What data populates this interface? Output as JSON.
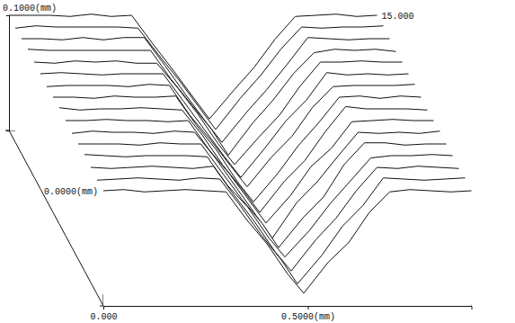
{
  "chart_data": {
    "type": "surface",
    "x": [
      0,
      0.05,
      0.1,
      0.15,
      0.2,
      0.25,
      0.3,
      0.35,
      0.4,
      0.45,
      0.49,
      0.55,
      0.6,
      0.65,
      0.7,
      0.75,
      0.8,
      0.85,
      0.9
    ],
    "xlim": [
      0,
      0.9
    ],
    "xticks": [
      {
        "value": 0,
        "label": "0.000"
      },
      {
        "value": 0.5,
        "label": "0.5000(mm)"
      }
    ],
    "ylim": [
      0,
      15
    ],
    "yticks": [
      {
        "value": 0,
        "label": "0.0000(mm)"
      },
      {
        "value": 15,
        "label": "15.000"
      }
    ],
    "zlim": [
      0,
      0.1
    ],
    "zticks": [
      {
        "value": 0.1,
        "label": "0.1000(mm)"
      }
    ],
    "color": "#111111",
    "series": [
      {
        "y": 15,
        "values": [
          0.1,
          0.1,
          0.1,
          0.099,
          0.101,
          0.099,
          0.1,
          0.076,
          0.053,
          0.029,
          0.01,
          0.035,
          0.055,
          0.079,
          0.099,
          0.1,
          0.101,
          0.099,
          0.1
        ]
      },
      {
        "y": 14,
        "values": [
          0.099,
          0.101,
          0.1,
          0.1,
          0.1,
          0.1,
          0.099,
          0.076,
          0.054,
          0.03,
          0.011,
          0.038,
          0.058,
          0.081,
          0.1,
          0.099,
          0.1,
          0.1,
          0.101
        ]
      },
      {
        "y": 13,
        "values": [
          0.1,
          0.1,
          0.099,
          0.101,
          0.099,
          0.101,
          0.101,
          0.077,
          0.052,
          0.028,
          0.01,
          0.036,
          0.056,
          0.078,
          0.101,
          0.1,
          0.099,
          0.1,
          0.1
        ]
      },
      {
        "y": 12,
        "values": [
          0.101,
          0.1,
          0.1,
          0.1,
          0.1,
          0.1,
          0.1,
          0.075,
          0.053,
          0.031,
          0.009,
          0.037,
          0.057,
          0.08,
          0.098,
          0.101,
          0.1,
          0.101,
          0.099
        ]
      },
      {
        "y": 11,
        "values": [
          0.1,
          0.099,
          0.101,
          0.1,
          0.101,
          0.099,
          0.099,
          0.078,
          0.055,
          0.029,
          0.011,
          0.035,
          0.054,
          0.079,
          0.1,
          0.1,
          0.101,
          0.1,
          0.1
        ]
      },
      {
        "y": 10,
        "values": [
          0.1,
          0.101,
          0.1,
          0.099,
          0.1,
          0.1,
          0.1,
          0.076,
          0.052,
          0.028,
          0.01,
          0.036,
          0.059,
          0.077,
          0.101,
          0.099,
          0.1,
          0.099,
          0.1
        ]
      },
      {
        "y": 9,
        "values": [
          0.099,
          0.1,
          0.1,
          0.1,
          0.099,
          0.101,
          0.1,
          0.074,
          0.053,
          0.03,
          0.012,
          0.038,
          0.056,
          0.081,
          0.099,
          0.1,
          0.1,
          0.1,
          0.101
        ]
      },
      {
        "y": 8,
        "values": [
          0.1,
          0.1,
          0.099,
          0.101,
          0.1,
          0.1,
          0.101,
          0.076,
          0.054,
          0.027,
          0.009,
          0.034,
          0.058,
          0.078,
          0.1,
          0.101,
          0.099,
          0.101,
          0.1
        ]
      },
      {
        "y": 7,
        "values": [
          0.101,
          0.099,
          0.1,
          0.1,
          0.101,
          0.1,
          0.099,
          0.077,
          0.051,
          0.029,
          0.01,
          0.037,
          0.055,
          0.08,
          0.102,
          0.1,
          0.1,
          0.1,
          0.099
        ]
      },
      {
        "y": 6,
        "values": [
          0.1,
          0.1,
          0.101,
          0.1,
          0.1,
          0.099,
          0.1,
          0.075,
          0.054,
          0.03,
          0.011,
          0.035,
          0.06,
          0.076,
          0.099,
          0.1,
          0.101,
          0.1,
          0.1
        ]
      },
      {
        "y": 5,
        "values": [
          0.099,
          0.101,
          0.1,
          0.1,
          0.099,
          0.101,
          0.1,
          0.078,
          0.053,
          0.028,
          0.008,
          0.039,
          0.057,
          0.079,
          0.1,
          0.099,
          0.1,
          0.099,
          0.101
        ]
      },
      {
        "y": 4,
        "values": [
          0.1,
          0.1,
          0.1,
          0.099,
          0.101,
          0.1,
          0.1,
          0.076,
          0.052,
          0.031,
          0.01,
          0.036,
          0.054,
          0.082,
          0.101,
          0.101,
          0.099,
          0.1,
          0.1
        ]
      },
      {
        "y": 3,
        "values": [
          0.101,
          0.1,
          0.099,
          0.1,
          0.1,
          0.1,
          0.099,
          0.074,
          0.055,
          0.029,
          0.012,
          0.035,
          0.058,
          0.078,
          0.098,
          0.1,
          0.1,
          0.101,
          0.1
        ]
      },
      {
        "y": 2,
        "values": [
          0.1,
          0.099,
          0.1,
          0.101,
          0.1,
          0.099,
          0.101,
          0.076,
          0.053,
          0.027,
          0.01,
          0.037,
          0.056,
          0.08,
          0.1,
          0.099,
          0.101,
          0.1,
          0.099
        ]
      },
      {
        "y": 1,
        "values": [
          0.099,
          0.1,
          0.101,
          0.1,
          0.099,
          0.101,
          0.1,
          0.077,
          0.052,
          0.03,
          0.009,
          0.034,
          0.059,
          0.077,
          0.101,
          0.1,
          0.099,
          0.1,
          0.101
        ]
      },
      {
        "y": 0,
        "values": [
          0.1,
          0.101,
          0.099,
          0.1,
          0.101,
          0.1,
          0.099,
          0.075,
          0.054,
          0.028,
          0.011,
          0.038,
          0.055,
          0.081,
          0.099,
          0.101,
          0.1,
          0.099,
          0.1
        ]
      }
    ]
  }
}
